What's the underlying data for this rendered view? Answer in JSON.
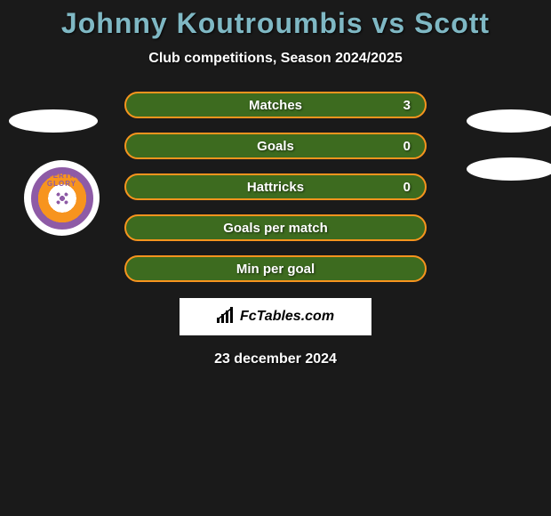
{
  "title": "Johnny Koutroumbis vs Scott",
  "subtitle": "Club competitions, Season 2024/2025",
  "date": "23 december 2024",
  "logo_text": "FcTables.com",
  "badge_label": "PERTH GLORY",
  "colors": {
    "title": "#7fb8c4",
    "text": "#ffffff",
    "background": "#1a1a1a",
    "pill_fill": "#3d6b1f",
    "pill_border": "#f7941e",
    "badge_primary": "#8e5ba6",
    "badge_secondary": "#f7941e"
  },
  "stats": [
    {
      "label": "Matches",
      "value": "3"
    },
    {
      "label": "Goals",
      "value": "0"
    },
    {
      "label": "Hattricks",
      "value": "0"
    },
    {
      "label": "Goals per match",
      "value": ""
    },
    {
      "label": "Min per goal",
      "value": ""
    }
  ]
}
